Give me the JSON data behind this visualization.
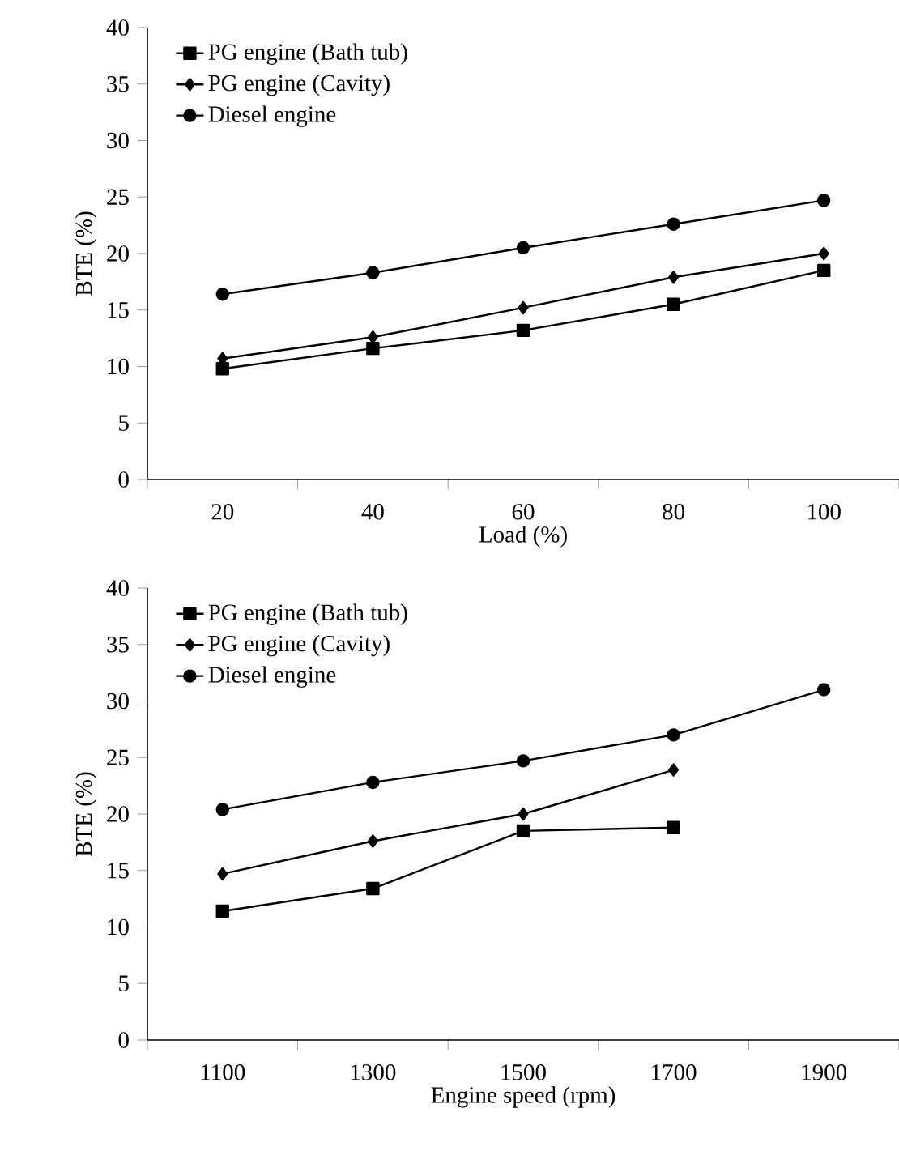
{
  "chart_data": [
    {
      "type": "line",
      "xlabel": "Load (%)",
      "ylabel": "BTE (%)",
      "categories": [
        "20",
        "40",
        "60",
        "80",
        "100"
      ],
      "ylim": [
        0,
        40
      ],
      "yticks": [
        0,
        5,
        10,
        15,
        20,
        25,
        30,
        35,
        40
      ],
      "legend": "top left",
      "grid": false,
      "series": [
        {
          "name": "PG engine (Bath tub)",
          "color": "#000000",
          "marker": "square",
          "values": [
            9.8,
            11.6,
            13.2,
            15.5,
            18.5
          ]
        },
        {
          "name": "PG engine (Cavity)",
          "color": "#000000",
          "marker": "diamond",
          "values": [
            10.7,
            12.6,
            15.2,
            17.9,
            20.0
          ]
        },
        {
          "name": "Diesel engine",
          "color": "#000000",
          "marker": "circle",
          "values": [
            16.4,
            18.3,
            20.5,
            22.6,
            24.7
          ]
        }
      ]
    },
    {
      "type": "line",
      "xlabel": "Engine speed (rpm)",
      "ylabel": "BTE (%)",
      "categories": [
        "1100",
        "1300",
        "1500",
        "1700",
        "1900"
      ],
      "ylim": [
        0,
        40
      ],
      "yticks": [
        0,
        5,
        10,
        15,
        20,
        25,
        30,
        35,
        40
      ],
      "legend": "top left",
      "grid": false,
      "series": [
        {
          "name": "PG engine (Bath tub)",
          "color": "#000000",
          "marker": "square",
          "values": [
            11.4,
            13.4,
            18.5,
            18.8,
            null
          ]
        },
        {
          "name": "PG engine (Cavity)",
          "color": "#000000",
          "marker": "diamond",
          "values": [
            14.7,
            17.6,
            20.0,
            23.9,
            null
          ]
        },
        {
          "name": "Diesel engine",
          "color": "#000000",
          "marker": "circle",
          "values": [
            20.4,
            22.8,
            24.7,
            27.0,
            31.0
          ]
        }
      ]
    }
  ]
}
